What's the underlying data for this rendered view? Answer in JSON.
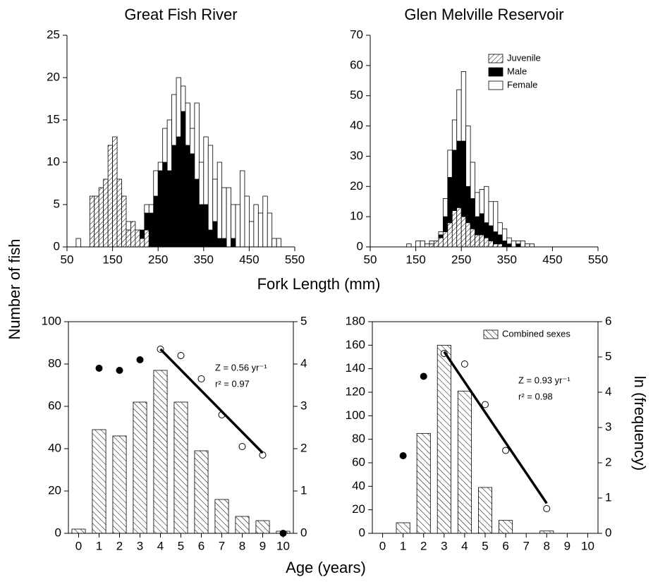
{
  "figure_labels": {
    "y_label": "Number of fish",
    "x_label_top": "Fork Length (mm)",
    "x_label_bottom": "Age (years)",
    "y2_label": "ln (frequency)"
  },
  "chart_data": [
    {
      "type": "histogram",
      "title": "Great Fish River",
      "bins": [
        70,
        80,
        90,
        100,
        110,
        120,
        130,
        140,
        150,
        160,
        170,
        180,
        190,
        200,
        210,
        220,
        230,
        240,
        250,
        260,
        270,
        280,
        290,
        300,
        310,
        320,
        330,
        340,
        350,
        360,
        370,
        380,
        390,
        400,
        410,
        420,
        430,
        440,
        450,
        460,
        470,
        480,
        490,
        500,
        510,
        520
      ],
      "series": [
        {
          "color": "#ffffff",
          "hatch": "forward",
          "values": [
            0,
            0,
            0,
            6,
            6,
            7,
            8,
            12,
            13,
            8,
            6,
            2,
            3,
            2,
            1,
            2,
            0,
            0,
            0,
            0,
            0,
            0,
            0,
            0,
            0,
            0,
            0,
            0,
            0,
            0,
            0,
            0,
            0,
            0,
            0,
            0,
            0,
            0,
            0,
            0,
            0,
            0,
            0,
            0,
            0
          ]
        },
        {
          "color": "#000000",
          "values": [
            0,
            0,
            0,
            0,
            0,
            0,
            0,
            0,
            0,
            0,
            0,
            0,
            0,
            0,
            1,
            2,
            4,
            6,
            9,
            10,
            9,
            12,
            13,
            16,
            12,
            11,
            8,
            5,
            5,
            2,
            3,
            1,
            1,
            0,
            1,
            0,
            0,
            0,
            0,
            0,
            0,
            0,
            0,
            0,
            0
          ]
        },
        {
          "color": "#ffffff",
          "values": [
            1,
            0,
            0,
            0,
            0,
            0,
            0,
            0,
            0,
            0,
            0,
            1,
            0,
            0,
            0,
            1,
            1,
            3,
            1,
            4,
            6,
            6,
            7,
            3,
            5,
            3,
            9,
            5,
            8,
            10,
            5,
            9,
            6,
            7,
            4,
            5,
            9,
            6,
            3,
            5,
            4,
            6,
            4,
            1,
            1
          ]
        }
      ],
      "xlim": [
        50,
        550
      ],
      "xticks": [
        50,
        150,
        250,
        350,
        450,
        550
      ],
      "ylim": [
        0,
        25
      ],
      "yticks": [
        0,
        5,
        10,
        15,
        20,
        25
      ]
    },
    {
      "type": "histogram",
      "title": "Glen Melville Reservoir",
      "bins": [
        130,
        140,
        150,
        160,
        170,
        180,
        190,
        200,
        210,
        220,
        230,
        240,
        250,
        260,
        270,
        280,
        290,
        300,
        310,
        320,
        330,
        340,
        350,
        360,
        370,
        380,
        390,
        400,
        410
      ],
      "series": [
        {
          "name": "Juvenile",
          "color": "#ffffff",
          "hatch": "forward",
          "values": [
            0,
            0,
            0,
            0,
            0,
            1,
            2,
            3,
            5,
            8,
            12,
            13,
            10,
            8,
            6,
            4,
            4,
            3,
            2,
            1,
            1,
            0,
            0,
            0,
            0,
            0,
            0,
            0
          ]
        },
        {
          "name": "Male",
          "color": "#000000",
          "values": [
            0,
            0,
            0,
            0,
            0,
            0,
            0,
            1,
            5,
            15,
            20,
            22,
            25,
            12,
            10,
            6,
            7,
            5,
            5,
            4,
            3,
            2,
            1,
            0,
            1,
            0,
            0,
            0
          ]
        },
        {
          "name": "Female",
          "color": "#ffffff",
          "values": [
            1,
            0,
            2,
            2,
            1,
            1,
            0,
            1,
            6,
            9,
            10,
            17,
            23,
            20,
            12,
            8,
            8,
            12,
            8,
            10,
            4,
            4,
            2,
            2,
            1,
            2,
            1,
            1
          ]
        }
      ],
      "legend": "upper right",
      "xlim": [
        50,
        550
      ],
      "xticks": [
        50,
        150,
        250,
        350,
        450,
        550
      ],
      "ylim": [
        0,
        70
      ],
      "yticks": [
        0,
        10,
        20,
        30,
        40,
        50,
        60,
        70
      ]
    },
    {
      "type": "bar",
      "xlim": [
        -0.5,
        10.5
      ],
      "xticks": [
        0,
        1,
        2,
        3,
        4,
        5,
        6,
        7,
        8,
        9,
        10
      ],
      "ylim": [
        0,
        100
      ],
      "yticks": [
        0,
        20,
        40,
        60,
        80,
        100
      ],
      "y2lim": [
        0,
        5
      ],
      "y2ticks": [
        0,
        1,
        2,
        3,
        4,
        5
      ],
      "series": [
        {
          "type": "bar",
          "color": "#ffffff",
          "hatch": "backward",
          "x": [
            0,
            1,
            2,
            3,
            4,
            5,
            6,
            7,
            8,
            9,
            10
          ],
          "values": [
            2,
            49,
            46,
            62,
            77,
            62,
            39,
            16,
            8,
            6,
            1
          ]
        },
        {
          "type": "scatter",
          "axis": "y2",
          "color": "#000000",
          "x": [
            1,
            2,
            3,
            10
          ],
          "values": [
            3.9,
            3.85,
            4.1,
            0
          ]
        },
        {
          "type": "scatter",
          "axis": "y2",
          "color": "#ffffff",
          "x": [
            4,
            5,
            6,
            7,
            8,
            9
          ],
          "values": [
            4.35,
            4.2,
            3.65,
            2.8,
            2.05,
            1.85
          ]
        },
        {
          "type": "line",
          "axis": "y2",
          "color": "#000000",
          "x": [
            4,
            9
          ],
          "values": [
            4.35,
            1.9
          ]
        }
      ],
      "annotations": [
        "Z = 0.56 yr⁻¹",
        "r² = 0.97"
      ]
    },
    {
      "type": "bar",
      "xlim": [
        -0.5,
        10.5
      ],
      "xticks": [
        0,
        1,
        2,
        3,
        4,
        5,
        6,
        7,
        8,
        9,
        10
      ],
      "ylim": [
        0,
        180
      ],
      "yticks": [
        0,
        20,
        40,
        60,
        80,
        100,
        120,
        140,
        160,
        180
      ],
      "y2lim": [
        0,
        6
      ],
      "y2ticks": [
        0,
        1,
        2,
        3,
        4,
        5,
        6
      ],
      "series": [
        {
          "type": "bar",
          "name": "Combined sexes",
          "color": "#ffffff",
          "hatch": "backward",
          "x": [
            1,
            2,
            3,
            4,
            5,
            6,
            8
          ],
          "values": [
            9,
            85,
            160,
            121,
            39,
            11,
            2
          ]
        },
        {
          "type": "scatter",
          "axis": "y2",
          "color": "#000000",
          "x": [
            1,
            2
          ],
          "values": [
            2.2,
            4.45
          ]
        },
        {
          "type": "scatter",
          "axis": "y2",
          "color": "#ffffff",
          "x": [
            3,
            4,
            5,
            6,
            8
          ],
          "values": [
            5.1,
            4.8,
            3.65,
            2.35,
            0.7
          ]
        },
        {
          "type": "line",
          "axis": "y2",
          "color": "#000000",
          "x": [
            3,
            8
          ],
          "values": [
            5.15,
            0.85
          ]
        }
      ],
      "legend": "upper right",
      "annotations": [
        "Z = 0.93 yr⁻¹",
        "r² = 0.98"
      ]
    }
  ]
}
